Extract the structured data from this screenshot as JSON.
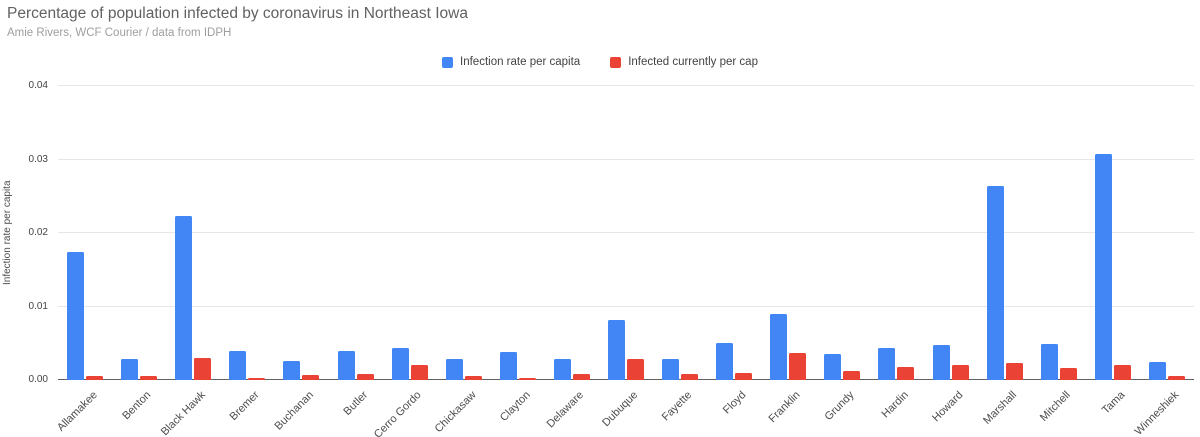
{
  "header": {
    "title": "Percentage of population infected by coronavirus in Northeast Iowa",
    "subtitle": "Amie Rivers, WCF Courier / data from IDPH"
  },
  "chart_data": {
    "type": "bar",
    "title": "Percentage of population infected by coronavirus in Northeast Iowa",
    "subtitle": "Amie Rivers, WCF Courier / data from IDPH",
    "categories": [
      "Allamakee",
      "Benton",
      "Black Hawk",
      "Bremer",
      "Buchanan",
      "Butler",
      "Cerro Gordo",
      "Chickasaw",
      "Clayton",
      "Delaware",
      "Dubuque",
      "Fayette",
      "Floyd",
      "Franklin",
      "Grundy",
      "Hardin",
      "Howard",
      "Marshall",
      "Mitchell",
      "Tama",
      "Winneshiek"
    ],
    "series": [
      {
        "name": "Infection rate per capita",
        "color": "#4285F4",
        "values": [
          0.0174,
          0.0029,
          0.0223,
          0.0039,
          0.0026,
          0.0039,
          0.0043,
          0.0028,
          0.0038,
          0.0029,
          0.0081,
          0.0028,
          0.005,
          0.009,
          0.0035,
          0.0044,
          0.0047,
          0.0264,
          0.0049,
          0.0308,
          0.0025
        ]
      },
      {
        "name": "Infected currently per cap",
        "color": "#EA4335",
        "values": [
          0.0005,
          0.0006,
          0.003,
          0.0003,
          0.0007,
          0.0008,
          0.002,
          0.0005,
          0.0003,
          0.0008,
          0.0028,
          0.0008,
          0.001,
          0.0037,
          0.0012,
          0.0018,
          0.0021,
          0.0023,
          0.0017,
          0.0021,
          0.0006
        ]
      }
    ],
    "xlabel": "",
    "ylabel": "Infection rate per capita",
    "ylim": [
      0,
      0.04
    ],
    "yticks": [
      0,
      0.01,
      0.02,
      0.03,
      0.04
    ],
    "ytick_labels": [
      "0.00",
      "0.01",
      "0.02",
      "0.03",
      "0.04"
    ],
    "grid": true,
    "legend_position": "top-center"
  },
  "colors": {
    "background": "#ffffff",
    "title": "#616161",
    "subtitle": "#9e9e9e",
    "axis_label": "#4d4d4d",
    "tick_label": "#444444",
    "gridline": "#e6e6e6",
    "axis_line": "#616161",
    "series_blue": "#4285F4",
    "series_red": "#EA4335"
  }
}
